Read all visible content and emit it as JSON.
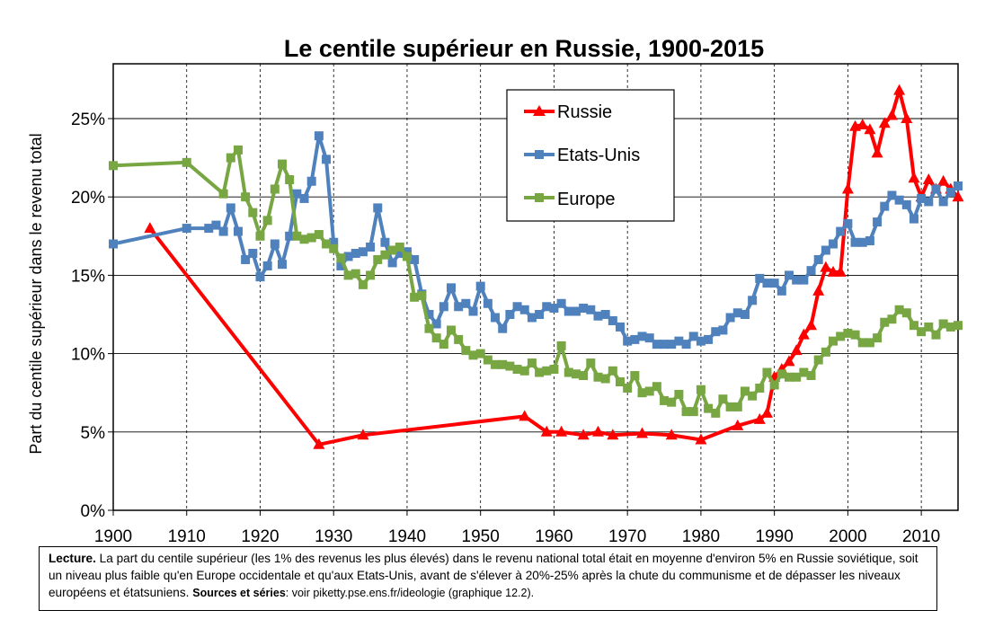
{
  "note": {
    "lead_label": "Lecture.",
    "text": "La part du centile supérieur (les 1% des revenus les plus élevés) dans le revenu national total était en moyenne d'environ 5% en Russie soviétique, soit un niveau plus faible qu'en Europe occidentale et qu'aux Etats-Unis, avant de s'élever à 20%-25% après la chute du communisme et de dépasser les niveaux européens et étatsuniens.",
    "sources_label": "Sources et séries",
    "sources_text": ": voir piketty.pse.ens.fr/ideologie (graphique 12.2)."
  },
  "chart_data": {
    "type": "line",
    "title": "Le centile supérieur en Russie, 1900-2015",
    "xlabel": "",
    "ylabel": "Part du centile supérieur dans le revenu total",
    "xlim": [
      1900,
      2015
    ],
    "ylim": [
      0,
      0.275
    ],
    "x_ticks": [
      1900,
      1910,
      1920,
      1930,
      1940,
      1950,
      1960,
      1970,
      1980,
      1990,
      2000,
      2010
    ],
    "y_ticks": [
      0,
      0.05,
      0.1,
      0.15,
      0.2,
      0.25
    ],
    "y_tick_labels": [
      "0%",
      "5%",
      "10%",
      "15%",
      "20%",
      "25%"
    ],
    "grid": true,
    "legend_position": "top-center",
    "series": [
      {
        "name": "Russie",
        "color": "#ff0000",
        "marker": "triangle",
        "points": [
          [
            1905,
            0.18
          ],
          [
            1928,
            0.042
          ],
          [
            1934,
            0.048
          ],
          [
            1956,
            0.06
          ],
          [
            1959,
            0.05
          ],
          [
            1961,
            0.05
          ],
          [
            1964,
            0.048
          ],
          [
            1966,
            0.05
          ],
          [
            1968,
            0.048
          ],
          [
            1972,
            0.049
          ],
          [
            1976,
            0.048
          ],
          [
            1980,
            0.045
          ],
          [
            1985,
            0.054
          ],
          [
            1988,
            0.058
          ],
          [
            1989,
            0.062
          ],
          [
            1990,
            0.085
          ],
          [
            1991,
            0.09
          ],
          [
            1992,
            0.095
          ],
          [
            1993,
            0.102
          ],
          [
            1994,
            0.112
          ],
          [
            1995,
            0.118
          ],
          [
            1996,
            0.14
          ],
          [
            1997,
            0.155
          ],
          [
            1998,
            0.152
          ],
          [
            1999,
            0.152
          ],
          [
            2000,
            0.205
          ],
          [
            2001,
            0.245
          ],
          [
            2002,
            0.246
          ],
          [
            2003,
            0.243
          ],
          [
            2004,
            0.228
          ],
          [
            2005,
            0.247
          ],
          [
            2006,
            0.252
          ],
          [
            2007,
            0.268
          ],
          [
            2008,
            0.25
          ],
          [
            2009,
            0.212
          ],
          [
            2010,
            0.2
          ],
          [
            2011,
            0.211
          ],
          [
            2012,
            0.205
          ],
          [
            2013,
            0.21
          ],
          [
            2014,
            0.205
          ],
          [
            2015,
            0.2
          ]
        ]
      },
      {
        "name": "Etats-Unis",
        "color": "#4f81bd",
        "marker": "square",
        "points": [
          [
            1900,
            0.17
          ],
          [
            1910,
            0.18
          ],
          [
            1913,
            0.18
          ],
          [
            1914,
            0.182
          ],
          [
            1915,
            0.178
          ],
          [
            1916,
            0.193
          ],
          [
            1917,
            0.178
          ],
          [
            1918,
            0.16
          ],
          [
            1919,
            0.164
          ],
          [
            1920,
            0.149
          ],
          [
            1921,
            0.156
          ],
          [
            1922,
            0.17
          ],
          [
            1923,
            0.157
          ],
          [
            1924,
            0.175
          ],
          [
            1925,
            0.202
          ],
          [
            1926,
            0.199
          ],
          [
            1927,
            0.21
          ],
          [
            1928,
            0.239
          ],
          [
            1929,
            0.224
          ],
          [
            1930,
            0.171
          ],
          [
            1931,
            0.156
          ],
          [
            1932,
            0.162
          ],
          [
            1933,
            0.164
          ],
          [
            1934,
            0.165
          ],
          [
            1935,
            0.168
          ],
          [
            1936,
            0.193
          ],
          [
            1937,
            0.171
          ],
          [
            1938,
            0.158
          ],
          [
            1939,
            0.164
          ],
          [
            1940,
            0.165
          ],
          [
            1941,
            0.16
          ],
          [
            1942,
            0.138
          ],
          [
            1943,
            0.125
          ],
          [
            1944,
            0.119
          ],
          [
            1945,
            0.13
          ],
          [
            1946,
            0.142
          ],
          [
            1947,
            0.13
          ],
          [
            1948,
            0.132
          ],
          [
            1949,
            0.127
          ],
          [
            1950,
            0.143
          ],
          [
            1951,
            0.132
          ],
          [
            1952,
            0.123
          ],
          [
            1953,
            0.116
          ],
          [
            1954,
            0.125
          ],
          [
            1955,
            0.13
          ],
          [
            1956,
            0.128
          ],
          [
            1957,
            0.123
          ],
          [
            1958,
            0.125
          ],
          [
            1959,
            0.13
          ],
          [
            1960,
            0.129
          ],
          [
            1961,
            0.132
          ],
          [
            1962,
            0.127
          ],
          [
            1963,
            0.127
          ],
          [
            1964,
            0.129
          ],
          [
            1965,
            0.128
          ],
          [
            1966,
            0.124
          ],
          [
            1967,
            0.125
          ],
          [
            1968,
            0.121
          ],
          [
            1969,
            0.117
          ],
          [
            1970,
            0.108
          ],
          [
            1971,
            0.109
          ],
          [
            1972,
            0.111
          ],
          [
            1973,
            0.11
          ],
          [
            1974,
            0.106
          ],
          [
            1975,
            0.106
          ],
          [
            1976,
            0.106
          ],
          [
            1977,
            0.108
          ],
          [
            1978,
            0.106
          ],
          [
            1979,
            0.111
          ],
          [
            1980,
            0.108
          ],
          [
            1981,
            0.109
          ],
          [
            1982,
            0.114
          ],
          [
            1983,
            0.115
          ],
          [
            1984,
            0.123
          ],
          [
            1985,
            0.126
          ],
          [
            1986,
            0.125
          ],
          [
            1987,
            0.134
          ],
          [
            1988,
            0.148
          ],
          [
            1989,
            0.145
          ],
          [
            1990,
            0.145
          ],
          [
            1991,
            0.14
          ],
          [
            1992,
            0.15
          ],
          [
            1993,
            0.147
          ],
          [
            1994,
            0.147
          ],
          [
            1995,
            0.153
          ],
          [
            1996,
            0.16
          ],
          [
            1997,
            0.166
          ],
          [
            1998,
            0.17
          ],
          [
            1999,
            0.178
          ],
          [
            2000,
            0.183
          ],
          [
            2001,
            0.171
          ],
          [
            2002,
            0.171
          ],
          [
            2003,
            0.172
          ],
          [
            2004,
            0.184
          ],
          [
            2005,
            0.194
          ],
          [
            2006,
            0.201
          ],
          [
            2007,
            0.198
          ],
          [
            2008,
            0.195
          ],
          [
            2009,
            0.186
          ],
          [
            2010,
            0.199
          ],
          [
            2011,
            0.197
          ],
          [
            2012,
            0.205
          ],
          [
            2013,
            0.197
          ],
          [
            2014,
            0.203
          ],
          [
            2015,
            0.207
          ]
        ]
      },
      {
        "name": "Europe",
        "color": "#77a642",
        "marker": "square",
        "points": [
          [
            1900,
            0.22
          ],
          [
            1910,
            0.222
          ],
          [
            1915,
            0.202
          ],
          [
            1916,
            0.225
          ],
          [
            1917,
            0.23
          ],
          [
            1918,
            0.2
          ],
          [
            1919,
            0.19
          ],
          [
            1920,
            0.175
          ],
          [
            1921,
            0.185
          ],
          [
            1922,
            0.205
          ],
          [
            1923,
            0.221
          ],
          [
            1924,
            0.211
          ],
          [
            1925,
            0.175
          ],
          [
            1926,
            0.173
          ],
          [
            1927,
            0.174
          ],
          [
            1928,
            0.176
          ],
          [
            1929,
            0.17
          ],
          [
            1930,
            0.167
          ],
          [
            1931,
            0.161
          ],
          [
            1932,
            0.15
          ],
          [
            1933,
            0.151
          ],
          [
            1934,
            0.144
          ],
          [
            1935,
            0.15
          ],
          [
            1936,
            0.16
          ],
          [
            1937,
            0.163
          ],
          [
            1938,
            0.166
          ],
          [
            1939,
            0.168
          ],
          [
            1940,
            0.162
          ],
          [
            1941,
            0.136
          ],
          [
            1942,
            0.137
          ],
          [
            1943,
            0.116
          ],
          [
            1944,
            0.11
          ],
          [
            1945,
            0.106
          ],
          [
            1946,
            0.115
          ],
          [
            1947,
            0.109
          ],
          [
            1948,
            0.102
          ],
          [
            1949,
            0.099
          ],
          [
            1950,
            0.1
          ],
          [
            1951,
            0.096
          ],
          [
            1952,
            0.093
          ],
          [
            1953,
            0.093
          ],
          [
            1954,
            0.092
          ],
          [
            1955,
            0.09
          ],
          [
            1956,
            0.089
          ],
          [
            1957,
            0.094
          ],
          [
            1958,
            0.088
          ],
          [
            1959,
            0.089
          ],
          [
            1960,
            0.09
          ],
          [
            1961,
            0.105
          ],
          [
            1962,
            0.088
          ],
          [
            1963,
            0.087
          ],
          [
            1964,
            0.086
          ],
          [
            1965,
            0.094
          ],
          [
            1966,
            0.085
          ],
          [
            1967,
            0.084
          ],
          [
            1968,
            0.089
          ],
          [
            1969,
            0.082
          ],
          [
            1970,
            0.078
          ],
          [
            1971,
            0.086
          ],
          [
            1972,
            0.075
          ],
          [
            1973,
            0.076
          ],
          [
            1974,
            0.079
          ],
          [
            1975,
            0.07
          ],
          [
            1976,
            0.069
          ],
          [
            1977,
            0.074
          ],
          [
            1978,
            0.063
          ],
          [
            1979,
            0.063
          ],
          [
            1980,
            0.077
          ],
          [
            1981,
            0.065
          ],
          [
            1982,
            0.062
          ],
          [
            1983,
            0.071
          ],
          [
            1984,
            0.066
          ],
          [
            1985,
            0.066
          ],
          [
            1986,
            0.076
          ],
          [
            1987,
            0.073
          ],
          [
            1988,
            0.078
          ],
          [
            1989,
            0.088
          ],
          [
            1990,
            0.08
          ],
          [
            1991,
            0.087
          ],
          [
            1992,
            0.085
          ],
          [
            1993,
            0.085
          ],
          [
            1994,
            0.088
          ],
          [
            1995,
            0.086
          ],
          [
            1996,
            0.096
          ],
          [
            1997,
            0.101
          ],
          [
            1998,
            0.108
          ],
          [
            1999,
            0.111
          ],
          [
            2000,
            0.113
          ],
          [
            2001,
            0.112
          ],
          [
            2002,
            0.107
          ],
          [
            2003,
            0.107
          ],
          [
            2004,
            0.11
          ],
          [
            2005,
            0.12
          ],
          [
            2006,
            0.122
          ],
          [
            2007,
            0.128
          ],
          [
            2008,
            0.126
          ],
          [
            2009,
            0.118
          ],
          [
            2010,
            0.114
          ],
          [
            2011,
            0.117
          ],
          [
            2012,
            0.112
          ],
          [
            2013,
            0.119
          ],
          [
            2014,
            0.117
          ],
          [
            2015,
            0.118
          ]
        ]
      }
    ]
  }
}
